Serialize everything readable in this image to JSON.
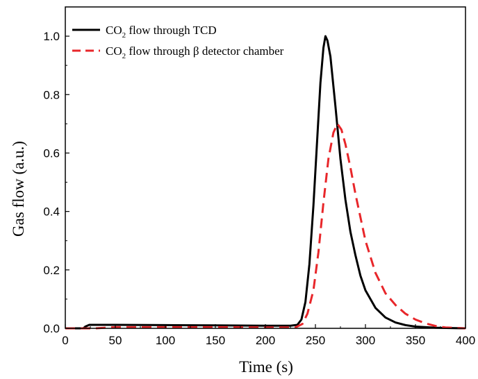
{
  "chart_data": {
    "type": "line",
    "xlabel": "Time (s)",
    "ylabel": "Gas flow (a.u.)",
    "xlim": [
      0,
      400
    ],
    "ylim": [
      0,
      1.1
    ],
    "xticks": [
      0,
      50,
      100,
      150,
      200,
      250,
      300,
      350,
      400
    ],
    "yticks": [
      0.0,
      0.2,
      0.4,
      0.6,
      0.8,
      1.0
    ],
    "ytick_labels": [
      "0.0",
      "0.2",
      "0.4",
      "0.6",
      "0.8",
      "1.0"
    ],
    "legend_position": "top-left",
    "series": [
      {
        "name": "CO2 flow through TCD",
        "legend": {
          "pre": "CO",
          "sub": "2",
          "post": " flow through TCD"
        },
        "color": "#000000",
        "style": "solid",
        "points": [
          [
            0,
            0.0
          ],
          [
            18,
            0.0
          ],
          [
            20,
            0.006
          ],
          [
            24,
            0.012
          ],
          [
            50,
            0.012
          ],
          [
            100,
            0.011
          ],
          [
            150,
            0.01
          ],
          [
            200,
            0.009
          ],
          [
            225,
            0.009
          ],
          [
            232,
            0.012
          ],
          [
            236,
            0.03
          ],
          [
            240,
            0.09
          ],
          [
            244,
            0.22
          ],
          [
            248,
            0.42
          ],
          [
            252,
            0.66
          ],
          [
            255,
            0.84
          ],
          [
            258,
            0.96
          ],
          [
            260,
            1.0
          ],
          [
            262,
            0.985
          ],
          [
            265,
            0.93
          ],
          [
            270,
            0.76
          ],
          [
            275,
            0.58
          ],
          [
            280,
            0.44
          ],
          [
            285,
            0.33
          ],
          [
            290,
            0.25
          ],
          [
            295,
            0.18
          ],
          [
            300,
            0.13
          ],
          [
            310,
            0.07
          ],
          [
            320,
            0.037
          ],
          [
            330,
            0.02
          ],
          [
            340,
            0.011
          ],
          [
            350,
            0.006
          ],
          [
            370,
            0.002
          ],
          [
            400,
            0.0
          ]
        ]
      },
      {
        "name": "CO2 flow through β detector chamber",
        "legend": {
          "pre": "CO",
          "sub": "2",
          "post": " flow through β detector chamber"
        },
        "color": "#e8262a",
        "style": "dashed",
        "points": [
          [
            0,
            0.0
          ],
          [
            30,
            0.0
          ],
          [
            50,
            0.004
          ],
          [
            100,
            0.004
          ],
          [
            150,
            0.004
          ],
          [
            200,
            0.003
          ],
          [
            230,
            0.003
          ],
          [
            237,
            0.015
          ],
          [
            242,
            0.05
          ],
          [
            248,
            0.13
          ],
          [
            253,
            0.26
          ],
          [
            258,
            0.43
          ],
          [
            263,
            0.58
          ],
          [
            268,
            0.67
          ],
          [
            272,
            0.7
          ],
          [
            276,
            0.68
          ],
          [
            280,
            0.63
          ],
          [
            285,
            0.55
          ],
          [
            290,
            0.46
          ],
          [
            295,
            0.38
          ],
          [
            300,
            0.3
          ],
          [
            310,
            0.19
          ],
          [
            320,
            0.12
          ],
          [
            330,
            0.08
          ],
          [
            340,
            0.05
          ],
          [
            350,
            0.03
          ],
          [
            360,
            0.017
          ],
          [
            370,
            0.008
          ],
          [
            380,
            0.003
          ],
          [
            400,
            0.0
          ]
        ]
      }
    ]
  }
}
